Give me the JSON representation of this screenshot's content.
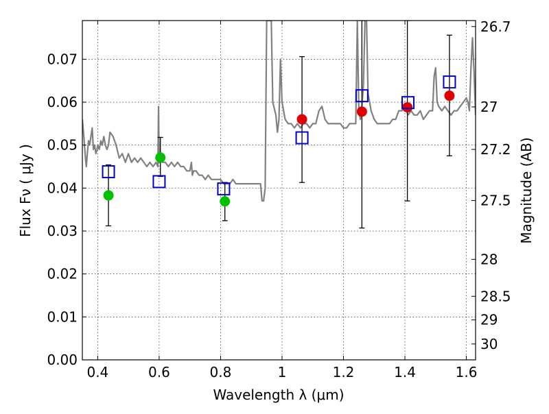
{
  "chart_data": {
    "type": "scatter",
    "xlabel": "Wavelength  λ (μm)",
    "ylabel": "Flux  Fν  ( μJy )",
    "ylabel_right": "Magnitude (AB)",
    "xlim": [
      0.35,
      1.63
    ],
    "ylim": [
      0.0,
      0.079
    ],
    "x_ticks": [
      0.4,
      0.6,
      0.8,
      1.0,
      1.2,
      1.4,
      1.6
    ],
    "x_tick_labels": [
      "0.4",
      "0.6",
      "0.8",
      "1",
      "1.2",
      "1.4",
      "1.6"
    ],
    "y_ticks": [
      0.0,
      0.01,
      0.02,
      0.03,
      0.04,
      0.05,
      0.06,
      0.07
    ],
    "y_tick_labels": [
      "0.00",
      "0.01",
      "0.02",
      "0.03",
      "0.04",
      "0.05",
      "0.06",
      "0.07"
    ],
    "mag_ticks": [
      {
        "label": "26.7",
        "flux": 0.0776
      },
      {
        "label": "27",
        "flux": 0.0589
      },
      {
        "label": "27.2",
        "flux": 0.049
      },
      {
        "label": "27.5",
        "flux": 0.0371
      },
      {
        "label": "28",
        "flux": 0.0234
      },
      {
        "label": "28.5",
        "flux": 0.0148
      },
      {
        "label": "29",
        "flux": 0.0093
      },
      {
        "label": "30",
        "flux": 0.0037
      }
    ],
    "grid": true,
    "series": [
      {
        "kind": "model_spectrum",
        "color": "#808080",
        "x": [
          0.35,
          0.355,
          0.36,
          0.363,
          0.366,
          0.37,
          0.374,
          0.378,
          0.382,
          0.386,
          0.39,
          0.394,
          0.398,
          0.4,
          0.405,
          0.41,
          0.415,
          0.42,
          0.425,
          0.43,
          0.435,
          0.44,
          0.45,
          0.46,
          0.47,
          0.48,
          0.49,
          0.5,
          0.51,
          0.52,
          0.53,
          0.54,
          0.55,
          0.56,
          0.57,
          0.58,
          0.59,
          0.596,
          0.598,
          0.6,
          0.602,
          0.605,
          0.61,
          0.62,
          0.63,
          0.64,
          0.65,
          0.66,
          0.67,
          0.68,
          0.69,
          0.7,
          0.705,
          0.708,
          0.712,
          0.72,
          0.73,
          0.74,
          0.75,
          0.76,
          0.77,
          0.78,
          0.79,
          0.8,
          0.81,
          0.82,
          0.83,
          0.84,
          0.85,
          0.86,
          0.87,
          0.88,
          0.89,
          0.9,
          0.91,
          0.92,
          0.93,
          0.935,
          0.94,
          0.945,
          0.95,
          0.953,
          0.956,
          0.96,
          0.965,
          0.97,
          0.98,
          0.985,
          0.99,
          0.995,
          1.0,
          1.01,
          1.02,
          1.03,
          1.04,
          1.05,
          1.06,
          1.07,
          1.08,
          1.09,
          1.1,
          1.11,
          1.12,
          1.13,
          1.14,
          1.15,
          1.16,
          1.17,
          1.18,
          1.19,
          1.2,
          1.21,
          1.22,
          1.23,
          1.24,
          1.245,
          1.25,
          1.255,
          1.26,
          1.265,
          1.27,
          1.275,
          1.28,
          1.285,
          1.29,
          1.3,
          1.31,
          1.32,
          1.33,
          1.34,
          1.35,
          1.36,
          1.37,
          1.38,
          1.39,
          1.4,
          1.41,
          1.42,
          1.43,
          1.44,
          1.45,
          1.46,
          1.47,
          1.48,
          1.49,
          1.495,
          1.5,
          1.505,
          1.51,
          1.52,
          1.53,
          1.54,
          1.55,
          1.56,
          1.57,
          1.58,
          1.59,
          1.6,
          1.605,
          1.61,
          1.615,
          1.62,
          1.625,
          1.63
        ],
        "y": [
          0.056,
          0.052,
          0.047,
          0.045,
          0.048,
          0.051,
          0.05,
          0.052,
          0.054,
          0.049,
          0.05,
          0.048,
          0.049,
          0.05,
          0.049,
          0.051,
          0.05,
          0.052,
          0.05,
          0.049,
          0.05,
          0.053,
          0.052,
          0.05,
          0.047,
          0.048,
          0.046,
          0.048,
          0.046,
          0.047,
          0.046,
          0.047,
          0.046,
          0.045,
          0.046,
          0.045,
          0.046,
          0.045,
          0.059,
          0.047,
          0.046,
          0.047,
          0.046,
          0.046,
          0.045,
          0.046,
          0.045,
          0.046,
          0.045,
          0.045,
          0.044,
          0.044,
          0.046,
          0.043,
          0.044,
          0.044,
          0.043,
          0.043,
          0.042,
          0.043,
          0.042,
          0.042,
          0.042,
          0.042,
          0.041,
          0.041,
          0.041,
          0.042,
          0.041,
          0.041,
          0.041,
          0.041,
          0.041,
          0.041,
          0.041,
          0.041,
          0.041,
          0.037,
          0.037,
          0.04,
          0.079,
          0.079,
          0.079,
          0.079,
          0.079,
          0.06,
          0.057,
          0.053,
          0.056,
          0.07,
          0.06,
          0.056,
          0.055,
          0.055,
          0.054,
          0.055,
          0.054,
          0.055,
          0.055,
          0.054,
          0.055,
          0.055,
          0.058,
          0.059,
          0.056,
          0.055,
          0.055,
          0.055,
          0.055,
          0.055,
          0.054,
          0.054,
          0.055,
          0.055,
          0.055,
          0.079,
          0.058,
          0.056,
          0.059,
          0.064,
          0.079,
          0.079,
          0.062,
          0.06,
          0.058,
          0.056,
          0.055,
          0.055,
          0.055,
          0.055,
          0.055,
          0.056,
          0.056,
          0.058,
          0.058,
          0.059,
          0.057,
          0.058,
          0.057,
          0.057,
          0.058,
          0.056,
          0.057,
          0.058,
          0.058,
          0.066,
          0.068,
          0.06,
          0.059,
          0.058,
          0.059,
          0.058,
          0.057,
          0.058,
          0.058,
          0.059,
          0.06,
          0.061,
          0.06,
          0.058,
          0.068,
          0.075,
          0.067,
          0.057
        ]
      },
      {
        "kind": "observed_flux",
        "color": "#e00000",
        "x": [
          1.065,
          1.26,
          1.408,
          1.545
        ],
        "y": [
          0.056,
          0.0578,
          0.0588,
          0.0615
        ],
        "err_low": [
          0.0413,
          0.0307,
          0.037,
          0.0475
        ],
        "err_high": [
          0.0706,
          0.079,
          0.079,
          0.0756
        ]
      },
      {
        "kind": "observed_flux",
        "color": "#00c000",
        "x": [
          0.435,
          0.604,
          0.814
        ],
        "y": [
          0.0383,
          0.0471,
          0.0369
        ],
        "err_low": [
          0.0312,
          0.0427,
          0.0324
        ],
        "err_high": [
          0.0454,
          0.0518,
          0.0413
        ]
      },
      {
        "kind": "model_bandpass",
        "color": "#0000cc",
        "x": [
          0.435,
          0.6,
          0.81,
          1.065,
          1.26,
          1.41,
          1.545
        ],
        "y": [
          0.0438,
          0.0415,
          0.0398,
          0.0517,
          0.0615,
          0.0599,
          0.0647
        ]
      }
    ]
  }
}
